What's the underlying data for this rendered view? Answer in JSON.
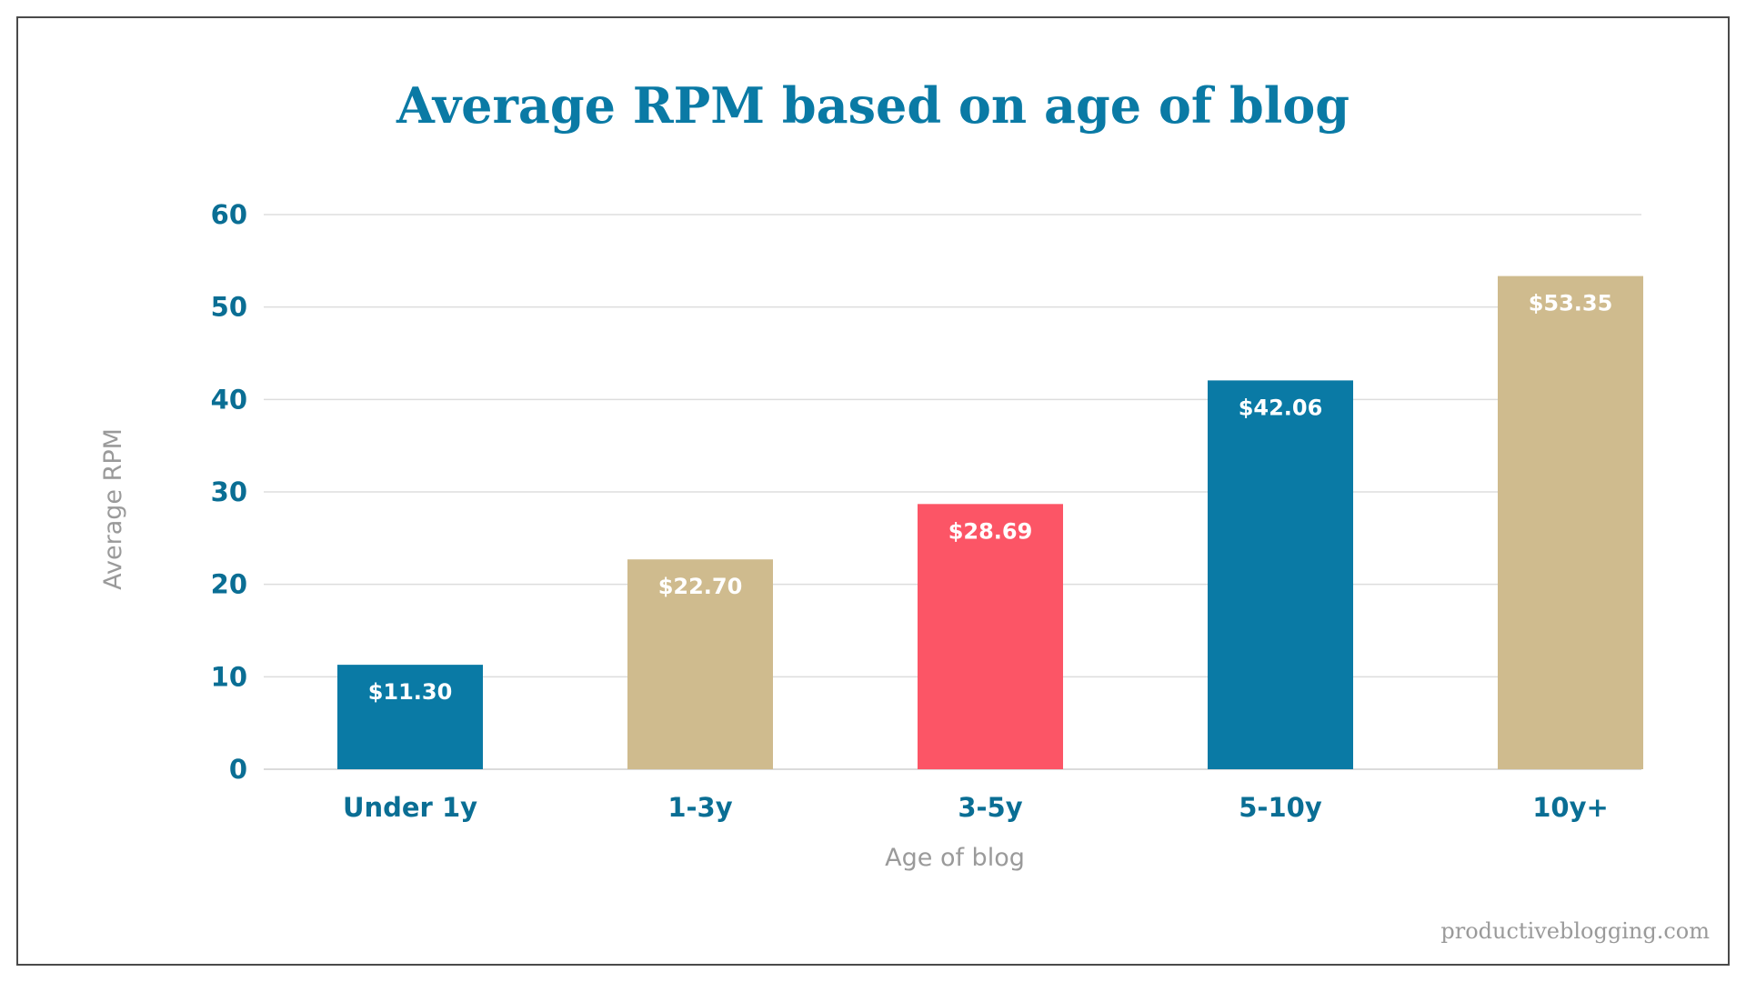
{
  "chart_data": {
    "type": "bar",
    "title": "Average RPM based on age of blog",
    "xlabel": "Age of blog",
    "ylabel": "Average RPM",
    "categories": [
      "Under 1y",
      "1-3y",
      "3-5y",
      "5-10y",
      "10y+"
    ],
    "values": [
      11.3,
      22.7,
      28.69,
      42.06,
      53.35
    ],
    "value_labels": [
      "$11.30",
      "$22.70",
      "$28.69",
      "$42.06",
      "$53.35"
    ],
    "bar_colors": [
      "#0a7aa5",
      "#cfbb8e",
      "#fc5566",
      "#0a7aa5",
      "#cfbb8e"
    ],
    "ylim": [
      0,
      60
    ],
    "yticks": [
      0,
      10,
      20,
      30,
      40,
      50,
      60
    ],
    "grid": true,
    "legend": "none"
  },
  "watermark": "productiveblogging.com",
  "colors": {
    "title": "#0a7aa5",
    "tick_text": "#0a6e94",
    "grid": "#dddddd",
    "axis_title": "#9a9a9a"
  }
}
